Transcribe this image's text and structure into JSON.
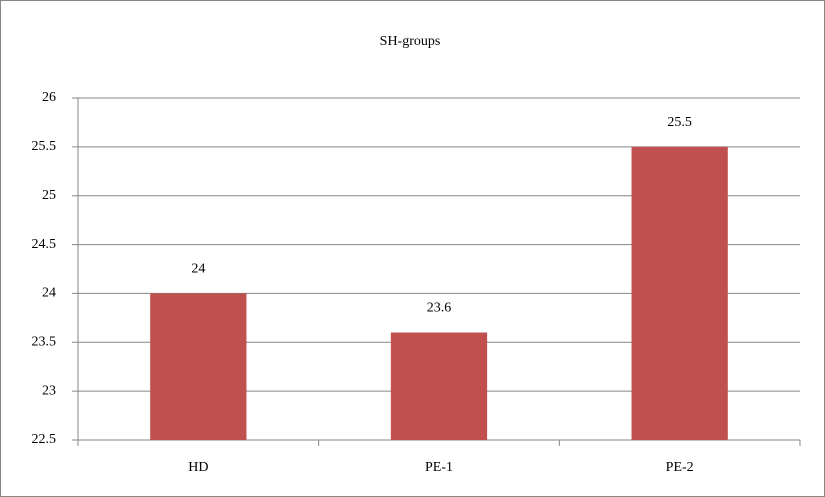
{
  "chart_data": {
    "type": "bar",
    "title": "SH-groups",
    "categories": [
      "HD",
      "PE-1",
      "PE-2"
    ],
    "values": [
      24,
      23.6,
      25.5
    ],
    "color": "#c0504d",
    "ylim": [
      22.5,
      26
    ],
    "yticks": [
      22.5,
      23,
      23.5,
      24,
      24.5,
      25,
      25.5,
      26
    ],
    "grid": true
  }
}
